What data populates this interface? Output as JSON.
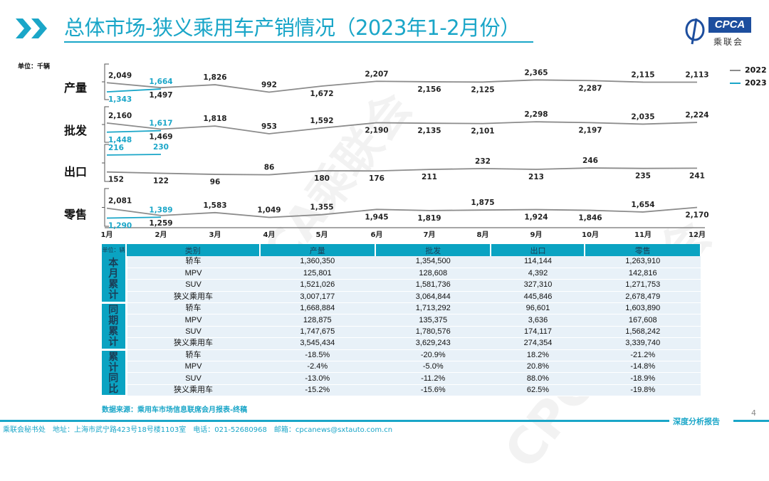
{
  "header": {
    "title": "总体市场-狭义乘用车产销情况（2023年1-2月份）",
    "logo_text": "CPCA",
    "logo_cn": "乘联会"
  },
  "watermark": "CPCA乘联会",
  "chart_data": {
    "type": "line",
    "unit_label": "单位：千辆",
    "categories": [
      "1月",
      "2月",
      "3月",
      "4月",
      "5月",
      "6月",
      "7月",
      "8月",
      "9月",
      "10月",
      "11月",
      "12月"
    ],
    "legend": [
      "2022",
      "2023"
    ],
    "colors": {
      "2022": "#8c8c8c",
      "2023": "#1aa6c8"
    },
    "panels": [
      {
        "name": "产量",
        "series": [
          {
            "name": "2022",
            "values": [
              2049,
              1497,
              1826,
              992,
              1672,
              2207,
              2156,
              2125,
              2365,
              2287,
              2115,
              2113
            ]
          },
          {
            "name": "2023",
            "values": [
              1343,
              1664
            ]
          }
        ]
      },
      {
        "name": "批发",
        "series": [
          {
            "name": "2022",
            "values": [
              2160,
              1469,
              1818,
              953,
              1592,
              2190,
              2135,
              2101,
              2298,
              2197,
              2035,
              2224
            ]
          },
          {
            "name": "2023",
            "values": [
              1448,
              1617
            ]
          }
        ]
      },
      {
        "name": "出口",
        "series": [
          {
            "name": "2022",
            "values": [
              152,
              122,
              96,
              86,
              180,
              176,
              211,
              232,
              213,
              246,
              235,
              241
            ]
          },
          {
            "name": "2023",
            "values": [
              216,
              230
            ]
          }
        ]
      },
      {
        "name": "零售",
        "series": [
          {
            "name": "2022",
            "values": [
              2081,
              1259,
              1583,
              1049,
              1355,
              1945,
              1819,
              1875,
              1924,
              1846,
              1654,
              2170
            ]
          },
          {
            "name": "2023",
            "values": [
              1290,
              1389
            ]
          }
        ]
      }
    ]
  },
  "table": {
    "unit": "单位：辆",
    "headers": [
      "类别",
      "产量",
      "批发",
      "出口",
      "零售"
    ],
    "groups": [
      {
        "label": "本月累计",
        "rows": [
          [
            "轿车",
            "1,360,350",
            "1,354,500",
            "114,144",
            "1,263,910"
          ],
          [
            "MPV",
            "125,801",
            "128,608",
            "4,392",
            "142,816"
          ],
          [
            "SUV",
            "1,521,026",
            "1,581,736",
            "327,310",
            "1,271,753"
          ],
          [
            "狭义乘用车",
            "3,007,177",
            "3,064,844",
            "445,846",
            "2,678,479"
          ]
        ]
      },
      {
        "label": "同期累计",
        "rows": [
          [
            "轿车",
            "1,668,884",
            "1,713,292",
            "96,601",
            "1,603,890"
          ],
          [
            "MPV",
            "128,875",
            "135,375",
            "3,636",
            "167,608"
          ],
          [
            "SUV",
            "1,747,675",
            "1,780,576",
            "174,117",
            "1,568,242"
          ],
          [
            "狭义乘用车",
            "3,545,434",
            "3,629,243",
            "274,354",
            "3,339,740"
          ]
        ]
      },
      {
        "label": "累计同比",
        "rows": [
          [
            "轿车",
            "-18.5%",
            "-20.9%",
            "18.2%",
            "-21.2%"
          ],
          [
            "MPV",
            "-2.4%",
            "-5.0%",
            "20.8%",
            "-14.8%"
          ],
          [
            "SUV",
            "-13.0%",
            "-11.2%",
            "88.0%",
            "-18.9%"
          ],
          [
            "狭义乘用车",
            "-15.2%",
            "-15.6%",
            "62.5%",
            "-19.8%"
          ]
        ]
      }
    ]
  },
  "footer": {
    "source": "数据来源：乘用车市场信息联席会月报表-终稿",
    "report": "深度分析报告",
    "page": "4",
    "address": "乘联会秘书处　地址：上海市武宁路423号18号楼1103室　电话：021-52680968　邮箱：cpcanews@sxtauto.com.cn"
  }
}
